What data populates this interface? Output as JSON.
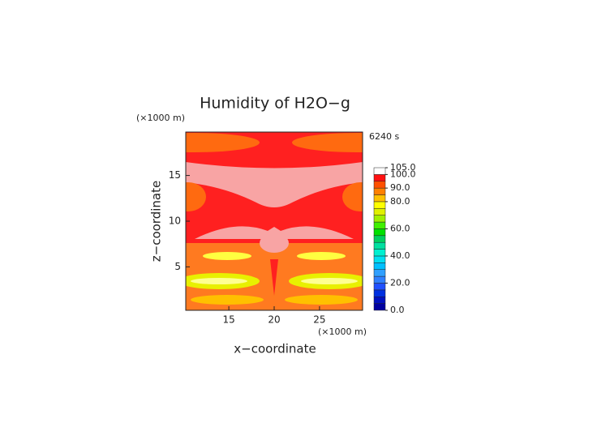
{
  "chart_data": {
    "type": "contour",
    "title": "Humidity of H2O−g",
    "xlabel": "x−coordinate",
    "ylabel": "z−coordinate",
    "x_unit": "(×1000 m)",
    "y_unit": "(×1000 m)",
    "time_label": "6240 s",
    "xlim": [
      10.25,
      29.75
    ],
    "ylim": [
      0.25,
      19.75
    ],
    "xticks": [
      15,
      20,
      25
    ],
    "yticks": [
      5,
      10,
      15
    ],
    "colorbar": {
      "levels": [
        0,
        5,
        10,
        15,
        20,
        25,
        30,
        35,
        40,
        45,
        50,
        55,
        60,
        65,
        70,
        75,
        80,
        85,
        90,
        95,
        100,
        105
      ],
      "colors": [
        "#0000a0",
        "#0010c0",
        "#0030e0",
        "#2050ff",
        "#3080ff",
        "#30a0ff",
        "#00c0ff",
        "#00e0f0",
        "#00f0d0",
        "#00e0a0",
        "#00d060",
        "#00e000",
        "#40f000",
        "#a0f000",
        "#e0f000",
        "#ffff00",
        "#ffc000",
        "#ff8000",
        "#ff5000",
        "#ff1010",
        "#ffffff"
      ],
      "ticks": [
        {
          "value": 0,
          "label": "0.0"
        },
        {
          "value": 20,
          "label": "20.0"
        },
        {
          "value": 40,
          "label": "40.0"
        },
        {
          "value": 60,
          "label": "60.0"
        },
        {
          "value": 80,
          "label": "80.0"
        },
        {
          "value": 90,
          "label": "90.0"
        },
        {
          "value": 100,
          "label": "100.0"
        },
        {
          "value": 105,
          "label": "105.0"
        }
      ]
    }
  }
}
